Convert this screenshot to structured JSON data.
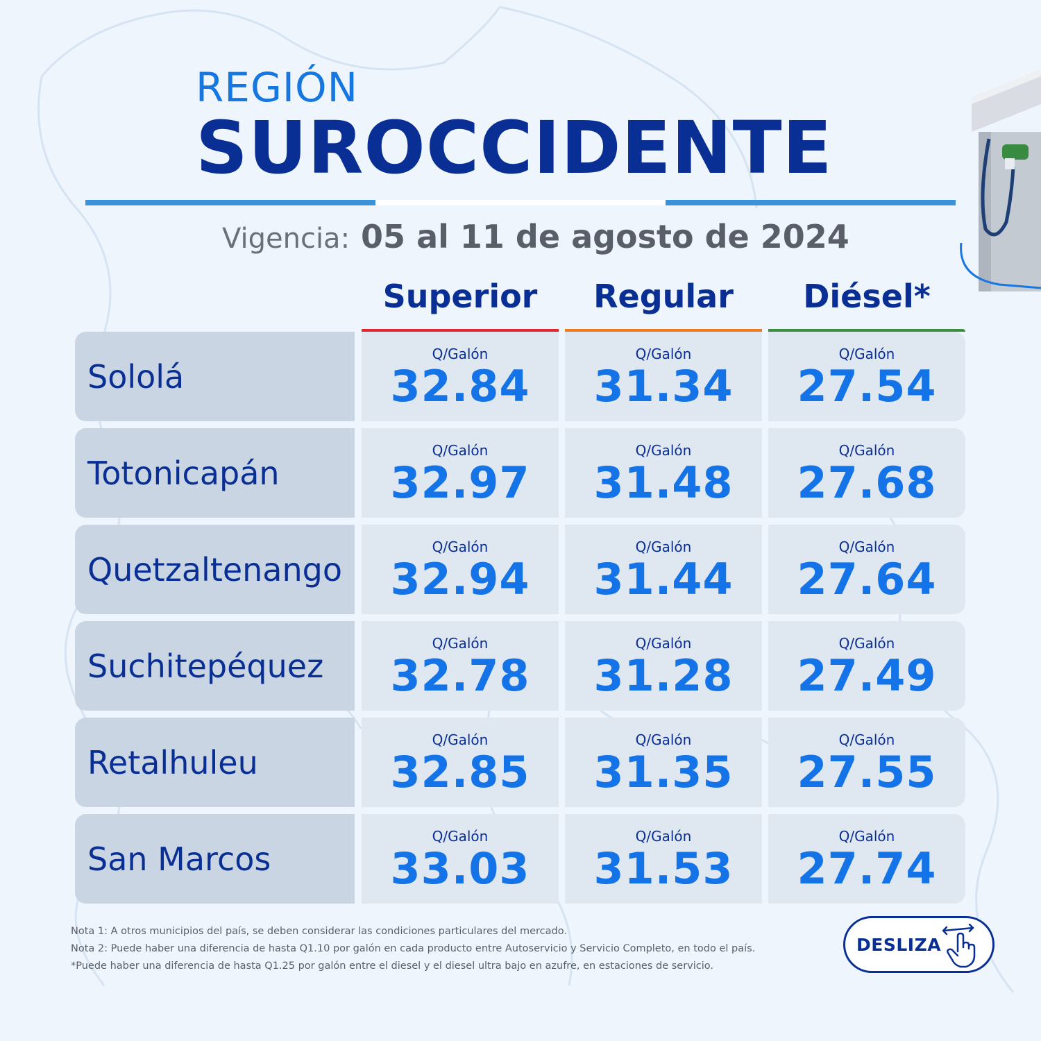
{
  "header": {
    "region_label": "REGIÓN",
    "region_name": "SUROCCIDENTE",
    "vigencia_label": "Vigencia:",
    "vigencia_dates": "05 al 11 de agosto de 2024"
  },
  "columns": [
    {
      "label": "Superior",
      "color": "#e3262e"
    },
    {
      "label": "Regular",
      "color": "#ec7b22"
    },
    {
      "label": "Diésel*",
      "color": "#3b8e3c"
    }
  ],
  "unit": "Q/Galón",
  "rows": [
    {
      "name": "Sololá",
      "superior": "32.84",
      "regular": "31.34",
      "diesel": "27.54"
    },
    {
      "name": "Totonicapán",
      "superior": "32.97",
      "regular": "31.48",
      "diesel": "27.68"
    },
    {
      "name": "Quetzaltenango",
      "superior": "32.94",
      "regular": "31.44",
      "diesel": "27.64"
    },
    {
      "name": "Suchitepéquez",
      "superior": "32.78",
      "regular": "31.28",
      "diesel": "27.49"
    },
    {
      "name": "Retalhuleu",
      "superior": "32.85",
      "regular": "31.35",
      "diesel": "27.55"
    },
    {
      "name": "San Marcos",
      "superior": "33.03",
      "regular": "31.53",
      "diesel": "27.74"
    }
  ],
  "notes": [
    "Nota 1: A otros municipios del país, se deben considerar las condiciones particulares del mercado.",
    "Nota 2: Puede haber una diferencia de hasta Q1.10 por galón en cada producto entre Autoservicio y Servicio Completo, en todo el país.",
    "*Puede haber una diferencia de hasta Q1.25 por galón entre el diesel y el diesel ultra bajo en azufre, en estaciones de servicio."
  ],
  "desliza": {
    "label": "DESLIZA",
    "icon": "swipe-hand-icon"
  },
  "decor": {
    "pump_icon": "fuel-pump-icon",
    "background": "region-map-outline"
  }
}
